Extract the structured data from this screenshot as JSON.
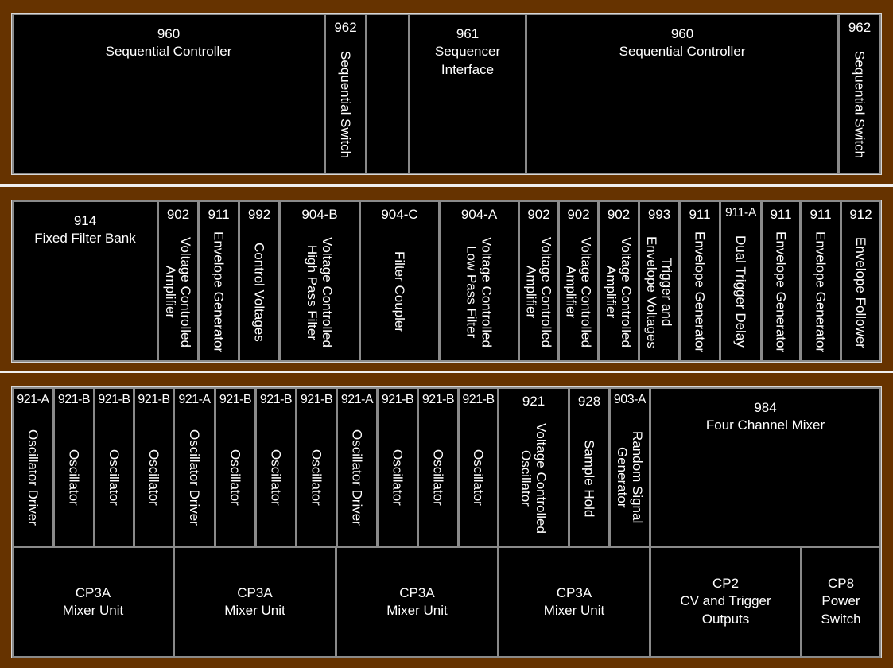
{
  "colors": {
    "cabinet": "#663300",
    "module": "#000000",
    "border": "#8a8a8a",
    "text": "#ffffff"
  },
  "row1": [
    {
      "num": "960",
      "name": "Sequential Controller",
      "orient": "horizontal"
    },
    {
      "num": "962",
      "name": "Sequential Switch",
      "orient": "vertical"
    },
    {
      "num": "",
      "name": "",
      "orient": "blank"
    },
    {
      "num": "961",
      "name": "Sequencer\nInterface",
      "orient": "horizontal"
    },
    {
      "num": "960",
      "name": "Sequential Controller",
      "orient": "horizontal"
    },
    {
      "num": "962",
      "name": "Sequential Switch",
      "orient": "vertical"
    }
  ],
  "row2": [
    {
      "num": "914",
      "name": "Fixed Filter Bank",
      "orient": "horizontal"
    },
    {
      "num": "902",
      "name": "Voltage Controlled\nAmplifier",
      "orient": "vertical"
    },
    {
      "num": "911",
      "name": "Envelope Generator",
      "orient": "vertical"
    },
    {
      "num": "992",
      "name": "Control Voltages",
      "orient": "vertical"
    },
    {
      "num": "904-B",
      "name": "Voltage Controlled\nHigh Pass Filter",
      "orient": "vertical"
    },
    {
      "num": "904-C",
      "name": "Filter Coupler",
      "orient": "vertical"
    },
    {
      "num": "904-A",
      "name": "Voltage Controlled\nLow Pass Filter",
      "orient": "vertical"
    },
    {
      "num": "902",
      "name": "Voltage Controlled\nAmplifier",
      "orient": "vertical"
    },
    {
      "num": "902",
      "name": "Voltage Controlled\nAmplifier",
      "orient": "vertical"
    },
    {
      "num": "902",
      "name": "Voltage Controlled\nAmplifier",
      "orient": "vertical"
    },
    {
      "num": "993",
      "name": "Trigger and\nEnvelope Voltages",
      "orient": "vertical"
    },
    {
      "num": "911",
      "name": "Envelope Generator",
      "orient": "vertical"
    },
    {
      "num": "911-A",
      "name": "Dual Trigger Delay",
      "orient": "vertical"
    },
    {
      "num": "911",
      "name": "Envelope Generator",
      "orient": "vertical"
    },
    {
      "num": "911",
      "name": "Envelope Generator",
      "orient": "vertical"
    },
    {
      "num": "912",
      "name": "Envelope Follower",
      "orient": "vertical"
    }
  ],
  "row3": [
    {
      "num": "921-A",
      "name": "Oscillator Driver",
      "orient": "vertical"
    },
    {
      "num": "921-B",
      "name": "Oscillator",
      "orient": "vertical"
    },
    {
      "num": "921-B",
      "name": "Oscillator",
      "orient": "vertical"
    },
    {
      "num": "921-B",
      "name": "Oscillator",
      "orient": "vertical"
    },
    {
      "num": "921-A",
      "name": "Oscillator Driver",
      "orient": "vertical"
    },
    {
      "num": "921-B",
      "name": "Oscillator",
      "orient": "vertical"
    },
    {
      "num": "921-B",
      "name": "Oscillator",
      "orient": "vertical"
    },
    {
      "num": "921-B",
      "name": "Oscillator",
      "orient": "vertical"
    },
    {
      "num": "921-A",
      "name": "Oscillator Driver",
      "orient": "vertical"
    },
    {
      "num": "921-B",
      "name": "Oscillator",
      "orient": "vertical"
    },
    {
      "num": "921-B",
      "name": "Oscillator",
      "orient": "vertical"
    },
    {
      "num": "921-B",
      "name": "Oscillator",
      "orient": "vertical"
    },
    {
      "num": "921",
      "name": "Voltage Controlled\nOscillator",
      "orient": "vertical"
    },
    {
      "num": "928",
      "name": "Sample Hold",
      "orient": "vertical"
    },
    {
      "num": "903-A",
      "name": "Random Signal\nGenerator",
      "orient": "vertical"
    },
    {
      "num": "984",
      "name": "Four Channel Mixer",
      "orient": "horizontal"
    }
  ],
  "row4": [
    {
      "num": "CP3A",
      "name": "Mixer Unit",
      "orient": "center"
    },
    {
      "num": "CP3A",
      "name": "Mixer Unit",
      "orient": "center"
    },
    {
      "num": "CP3A",
      "name": "Mixer Unit",
      "orient": "center"
    },
    {
      "num": "CP3A",
      "name": "Mixer Unit",
      "orient": "center"
    },
    {
      "num": "CP2",
      "name": "CV and Trigger\nOutputs",
      "orient": "center"
    },
    {
      "num": "CP8",
      "name": "Power\nSwitch",
      "orient": "center"
    }
  ]
}
